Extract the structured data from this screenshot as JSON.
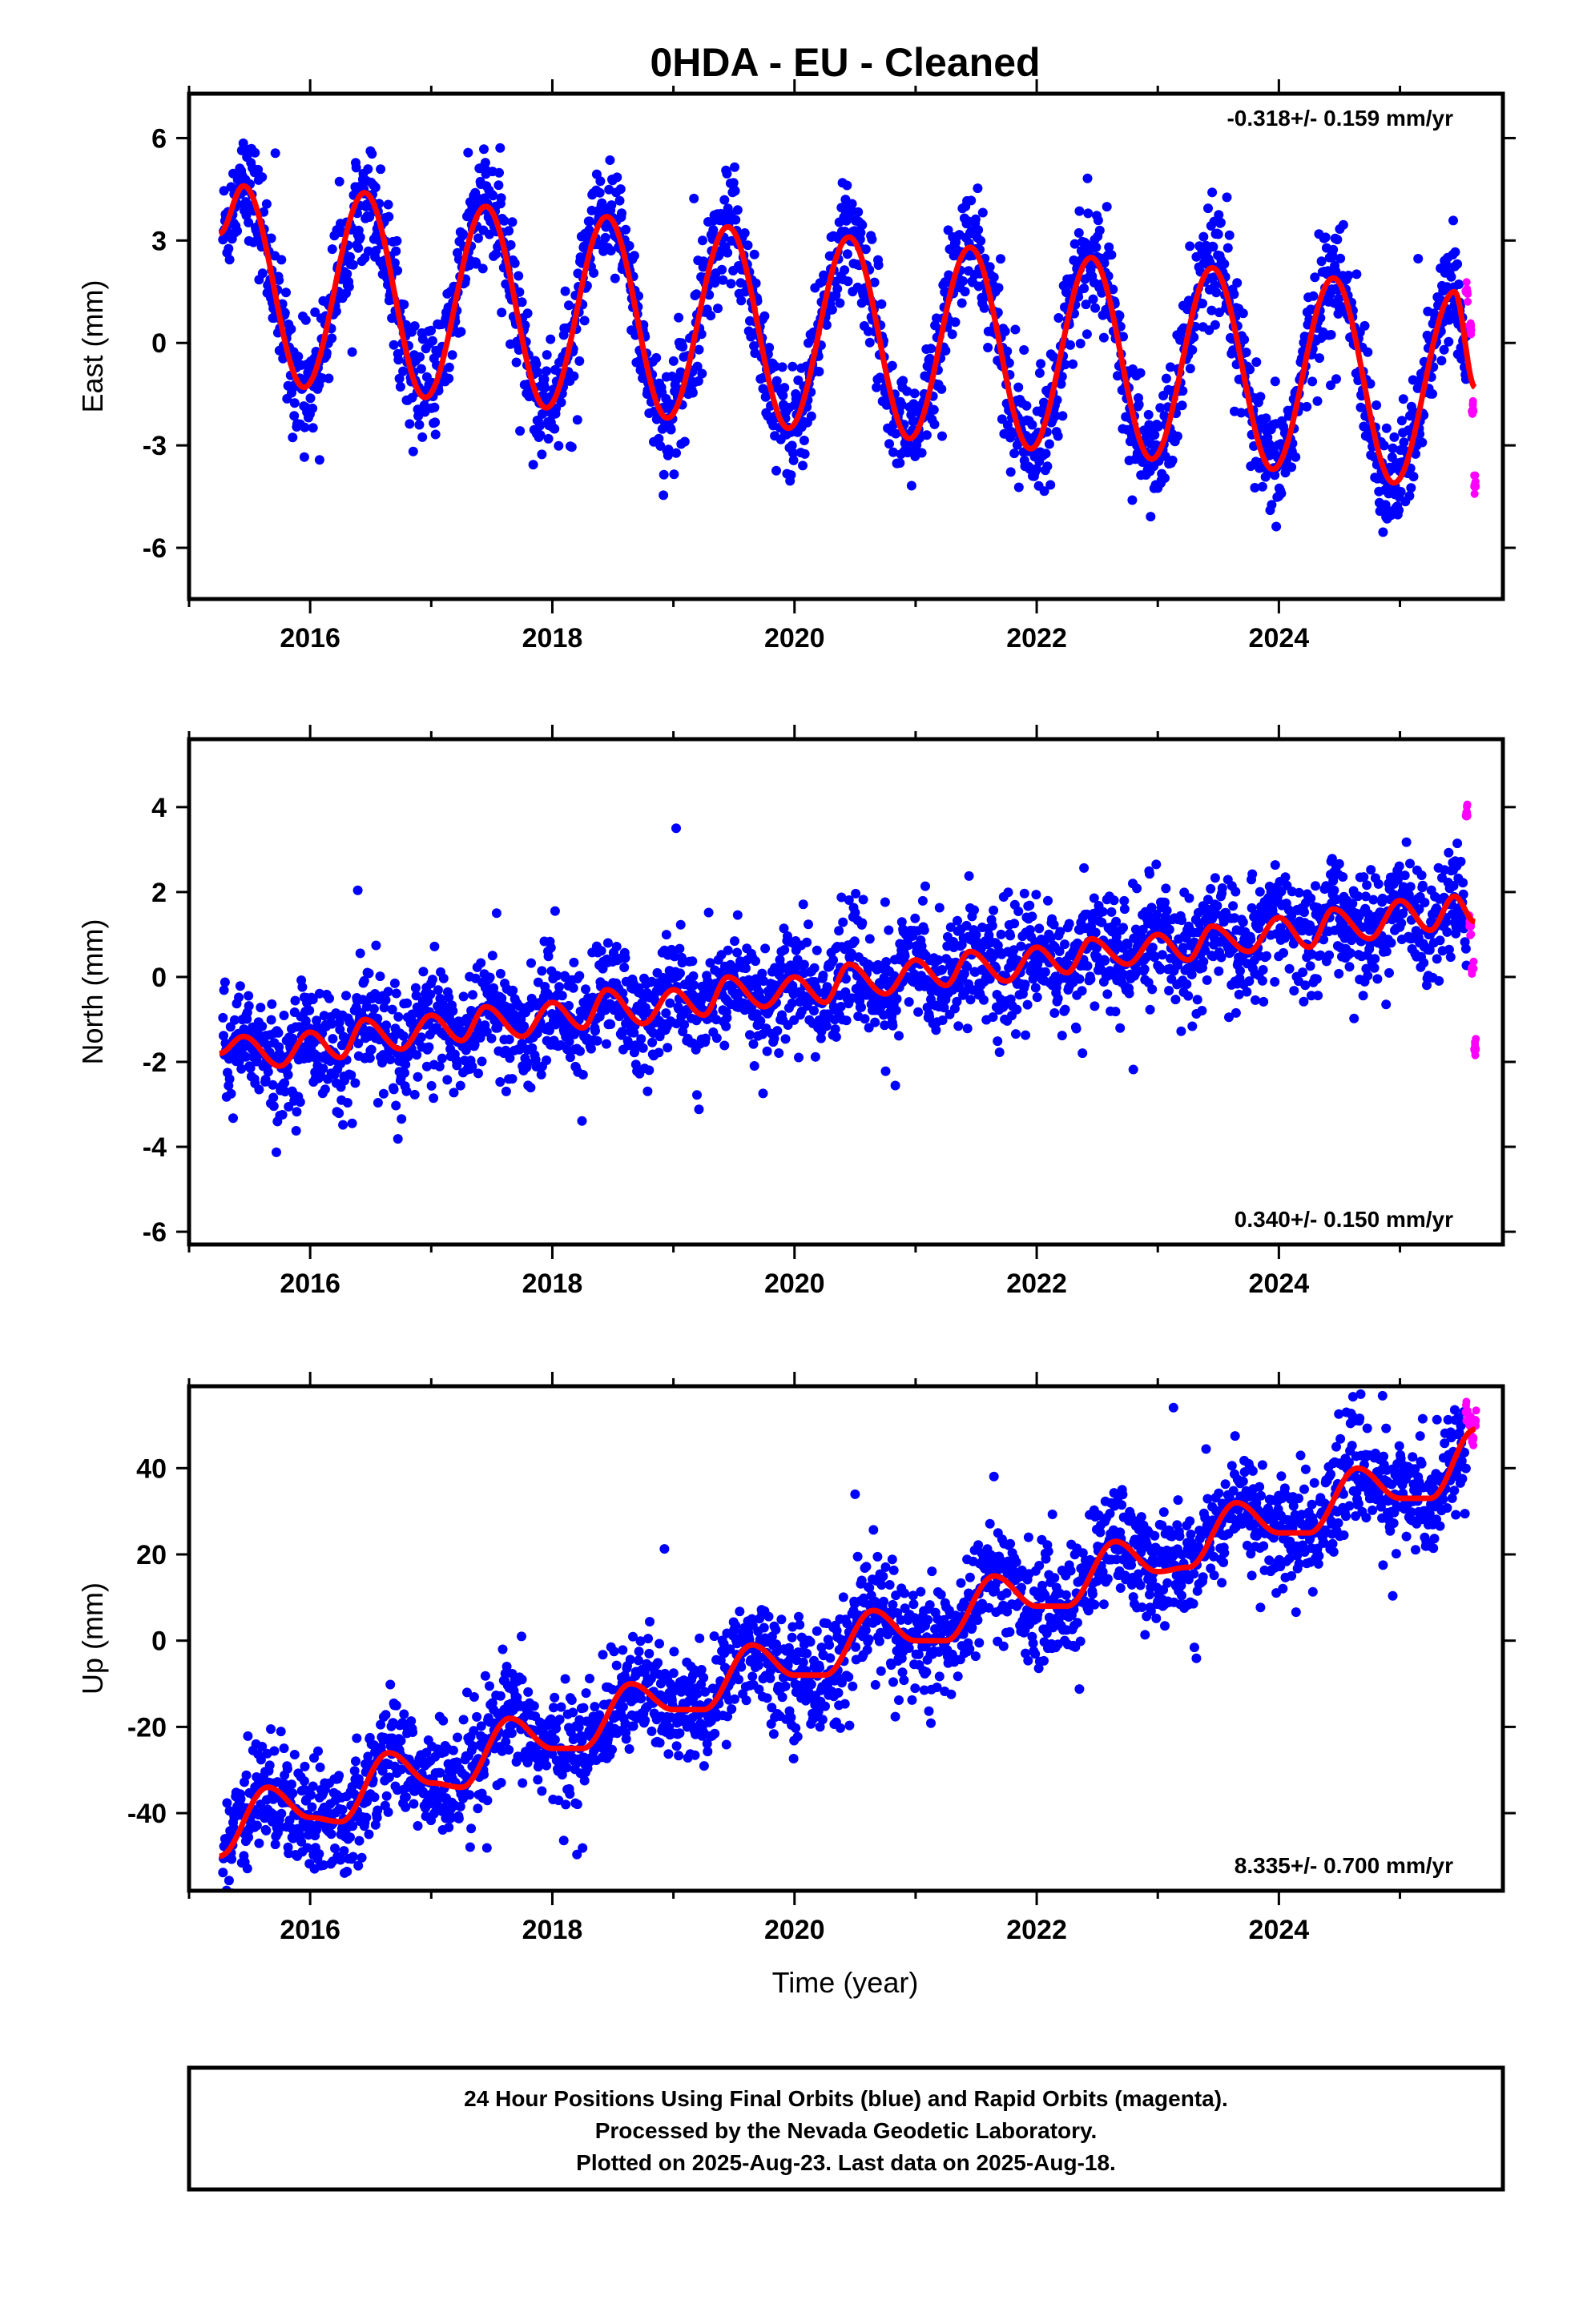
{
  "title": "0HDA  - EU - Cleaned",
  "xlabel": "Time (year)",
  "caption": {
    "line1": "24 Hour Positions Using Final Orbits (blue) and Rapid Orbits (magenta).",
    "line2": "Processed by the Nevada Geodetic Laboratory.",
    "line3": "Plotted on 2025-Aug-23. Last data on 2025-Aug-18."
  },
  "colors": {
    "final": "#0000ff",
    "rapid": "#ff00ff",
    "model": "#ff0000",
    "frame": "#000000"
  },
  "chart_data": [
    {
      "type": "scatter",
      "component": "east",
      "ylabel": "East (mm)",
      "rate": "-0.318+/- 0.159 mm/yr",
      "rate_position": "top-right",
      "xlim": [
        2015.0,
        2025.85
      ],
      "ylim": [
        -7.5,
        7.3
      ],
      "xticks": [
        2016,
        2018,
        2020,
        2022,
        2024
      ],
      "yticks": [
        -6,
        -3,
        0,
        3,
        6
      ],
      "series": [
        {
          "name": "Final Orbits",
          "color": "#0000ff"
        },
        {
          "name": "Rapid Orbits",
          "color": "#ff00ff"
        }
      ],
      "model": {
        "x": [
          2015.25,
          2015.45,
          2015.95,
          2016.45,
          2016.95,
          2017.45,
          2017.95,
          2018.45,
          2018.95,
          2019.45,
          2019.95,
          2020.45,
          2020.95,
          2021.45,
          2021.95,
          2022.45,
          2022.95,
          2023.45,
          2023.95,
          2024.45,
          2024.95,
          2025.45,
          2025.62
        ],
        "y": [
          3.2,
          4.6,
          -1.3,
          4.4,
          -1.6,
          4.0,
          -1.9,
          3.7,
          -2.2,
          3.4,
          -2.5,
          3.1,
          -2.8,
          2.8,
          -3.1,
          2.5,
          -3.4,
          2.2,
          -3.7,
          1.9,
          -4.1,
          1.5,
          -1.3
        ]
      },
      "final_points": {
        "x": [
          2015.3,
          2015.5,
          2015.7,
          2015.9,
          2016.1,
          2016.3,
          2016.5,
          2016.7,
          2016.9,
          2017.1,
          2017.3,
          2017.5,
          2017.7,
          2017.9,
          2018.1,
          2018.3,
          2018.5,
          2018.7,
          2018.9,
          2019.1,
          2019.3,
          2019.5,
          2019.7,
          2019.9,
          2020.1,
          2020.3,
          2020.5,
          2020.7,
          2020.9,
          2021.1,
          2021.3,
          2021.5,
          2021.7,
          2021.9,
          2022.1,
          2022.3,
          2022.5,
          2022.7,
          2022.9,
          2023.1,
          2023.3,
          2023.5,
          2023.7,
          2023.9,
          2024.1,
          2024.3,
          2024.5,
          2024.7,
          2024.9,
          2025.1,
          2025.3,
          2025.5
        ],
        "y": [
          4.0,
          4.3,
          1.6,
          -1.0,
          0.9,
          3.5,
          4.0,
          0.8,
          -1.4,
          0.6,
          3.2,
          3.7,
          0.5,
          -1.7,
          0.3,
          2.9,
          3.4,
          0.2,
          -2.0,
          0.0,
          2.6,
          3.1,
          -0.1,
          -2.3,
          -0.3,
          2.3,
          2.8,
          -0.4,
          -2.6,
          -0.6,
          2.0,
          2.5,
          -0.7,
          -2.9,
          -0.9,
          1.7,
          2.2,
          -1.0,
          -3.2,
          -1.2,
          1.4,
          1.9,
          -1.3,
          -3.5,
          -1.5,
          1.1,
          1.6,
          -1.6,
          -3.8,
          -1.8,
          0.8,
          1.3
        ]
      },
      "rapid_points": {
        "x": [
          2025.55,
          2025.58,
          2025.6,
          2025.62
        ],
        "y": [
          1.5,
          0.5,
          -2.0,
          -4.2
        ]
      }
    },
    {
      "type": "scatter",
      "component": "north",
      "ylabel": "North (mm)",
      "rate": "0.340+/- 0.150 mm/yr",
      "rate_position": "bottom-right",
      "xlim": [
        2015.0,
        2025.85
      ],
      "ylim": [
        -6.3,
        5.6
      ],
      "xticks": [
        2016,
        2018,
        2020,
        2022,
        2024
      ],
      "yticks": [
        -6,
        -4,
        -2,
        0,
        2,
        4
      ],
      "series": [
        {
          "name": "Final Orbits",
          "color": "#0000ff"
        },
        {
          "name": "Rapid Orbits",
          "color": "#ff00ff"
        }
      ],
      "model": {
        "x": [
          2015.25,
          2015.45,
          2015.75,
          2016.0,
          2016.25,
          2016.45,
          2016.75,
          2017.0,
          2017.25,
          2017.45,
          2017.75,
          2018.0,
          2018.25,
          2018.45,
          2018.75,
          2019.0,
          2019.25,
          2019.45,
          2019.75,
          2020.0,
          2020.25,
          2020.45,
          2020.75,
          2021.0,
          2021.25,
          2021.45,
          2021.75,
          2022.0,
          2022.25,
          2022.45,
          2022.75,
          2023.0,
          2023.25,
          2023.45,
          2023.75,
          2024.0,
          2024.25,
          2024.45,
          2024.75,
          2025.0,
          2025.25,
          2025.45,
          2025.62
        ],
        "y": [
          -1.8,
          -1.4,
          -2.1,
          -1.3,
          -1.9,
          -1.0,
          -1.7,
          -0.9,
          -1.5,
          -0.7,
          -1.4,
          -0.6,
          -1.2,
          -0.3,
          -1.1,
          -0.3,
          -0.9,
          0.0,
          -0.7,
          0.0,
          -0.6,
          0.3,
          -0.4,
          0.4,
          -0.2,
          0.6,
          -0.1,
          0.7,
          0.1,
          0.9,
          0.3,
          1.0,
          0.4,
          1.2,
          0.6,
          1.4,
          0.7,
          1.6,
          0.9,
          1.8,
          1.1,
          1.9,
          1.3
        ]
      },
      "final_points": {
        "x": [
          2015.3,
          2015.5,
          2015.7,
          2015.9,
          2016.1,
          2016.3,
          2016.5,
          2016.7,
          2016.9,
          2017.1,
          2017.3,
          2017.5,
          2017.7,
          2017.9,
          2018.1,
          2018.3,
          2018.5,
          2018.7,
          2018.9,
          2019.1,
          2019.3,
          2019.5,
          2019.7,
          2019.9,
          2020.1,
          2020.3,
          2020.5,
          2020.7,
          2020.9,
          2021.1,
          2021.3,
          2021.5,
          2021.7,
          2021.9,
          2022.1,
          2022.3,
          2022.5,
          2022.7,
          2022.9,
          2023.1,
          2023.3,
          2023.5,
          2023.7,
          2023.9,
          2024.1,
          2024.3,
          2024.5,
          2024.7,
          2024.9,
          2025.1,
          2025.3,
          2025.5
        ],
        "y": [
          -2.0,
          -1.5,
          -1.9,
          -1.6,
          -1.8,
          -1.2,
          -1.5,
          -1.1,
          -1.4,
          -1.0,
          -1.2,
          -0.9,
          -1.0,
          -0.8,
          -0.9,
          -0.5,
          -0.6,
          -0.5,
          -0.4,
          0.1,
          0.8,
          -0.2,
          -0.1,
          0.1,
          0.2,
          0.6,
          0.3,
          0.0,
          0.1,
          0.2,
          0.5,
          0.3,
          0.2,
          0.4,
          0.5,
          0.8,
          0.7,
          0.6,
          0.9,
          0.8,
          1.0,
          0.9,
          0.8,
          1.1,
          1.0,
          1.3,
          1.2,
          1.1,
          1.4,
          1.5,
          1.4,
          1.3
        ]
      },
      "rapid_points": {
        "x": [
          2025.55,
          2025.58,
          2025.6,
          2025.62
        ],
        "y": [
          3.8,
          1.2,
          0.2,
          -1.7
        ]
      }
    },
    {
      "type": "scatter",
      "component": "up",
      "ylabel": "Up (mm)",
      "rate": "8.335+/- 0.700 mm/yr",
      "rate_position": "bottom-right",
      "xlim": [
        2015.0,
        2025.85
      ],
      "ylim": [
        -58,
        59
      ],
      "xticks": [
        2016,
        2018,
        2020,
        2022,
        2024
      ],
      "yticks": [
        -40,
        -20,
        0,
        20,
        40
      ],
      "series": [
        {
          "name": "Final Orbits",
          "color": "#0000ff"
        },
        {
          "name": "Rapid Orbits",
          "color": "#ff00ff"
        }
      ],
      "model": {
        "x": [
          2015.25,
          2015.65,
          2016.0,
          2016.25,
          2016.65,
          2017.0,
          2017.25,
          2017.65,
          2018.0,
          2018.25,
          2018.65,
          2019.0,
          2019.25,
          2019.65,
          2020.0,
          2020.25,
          2020.65,
          2021.0,
          2021.25,
          2021.65,
          2022.0,
          2022.25,
          2022.65,
          2023.0,
          2023.25,
          2023.65,
          2024.0,
          2024.25,
          2024.65,
          2025.0,
          2025.25,
          2025.62
        ],
        "y": [
          -50,
          -34,
          -41,
          -42,
          -26,
          -33,
          -34,
          -18,
          -25,
          -25,
          -10,
          -16,
          -16,
          -1,
          -8,
          -8,
          7,
          0,
          0,
          15,
          8,
          8,
          23,
          16,
          17,
          32,
          25,
          25,
          40,
          33,
          33,
          49
        ]
      },
      "final_points": {
        "x": [
          2015.3,
          2015.5,
          2015.7,
          2015.9,
          2016.1,
          2016.3,
          2016.5,
          2016.7,
          2016.9,
          2017.1,
          2017.3,
          2017.5,
          2017.7,
          2017.9,
          2018.1,
          2018.3,
          2018.5,
          2018.7,
          2018.9,
          2019.1,
          2019.3,
          2019.5,
          2019.7,
          2019.9,
          2020.1,
          2020.3,
          2020.5,
          2020.7,
          2020.9,
          2021.1,
          2021.3,
          2021.5,
          2021.7,
          2021.9,
          2022.1,
          2022.3,
          2022.5,
          2022.7,
          2022.9,
          2023.1,
          2023.3,
          2023.5,
          2023.7,
          2023.9,
          2024.1,
          2024.3,
          2024.5,
          2024.7,
          2024.9,
          2025.1,
          2025.3,
          2025.5
        ],
        "y": [
          -47,
          -40,
          -36,
          -40,
          -43,
          -38,
          -30,
          -27,
          -32,
          -34,
          -28,
          -20,
          -19,
          -24,
          -26,
          -20,
          -12,
          -11,
          -15,
          -17,
          -11,
          -3,
          -2,
          -7,
          -9,
          -3,
          5,
          5,
          0,
          -1,
          5,
          13,
          13,
          9,
          7,
          13,
          21,
          21,
          16,
          15,
          21,
          30,
          29,
          25,
          23,
          30,
          38,
          37,
          33,
          32,
          37,
          46
        ]
      },
      "rapid_points": {
        "x": [
          2025.55,
          2025.58,
          2025.6,
          2025.62
        ],
        "y": [
          53,
          50,
          47,
          51
        ]
      }
    }
  ]
}
